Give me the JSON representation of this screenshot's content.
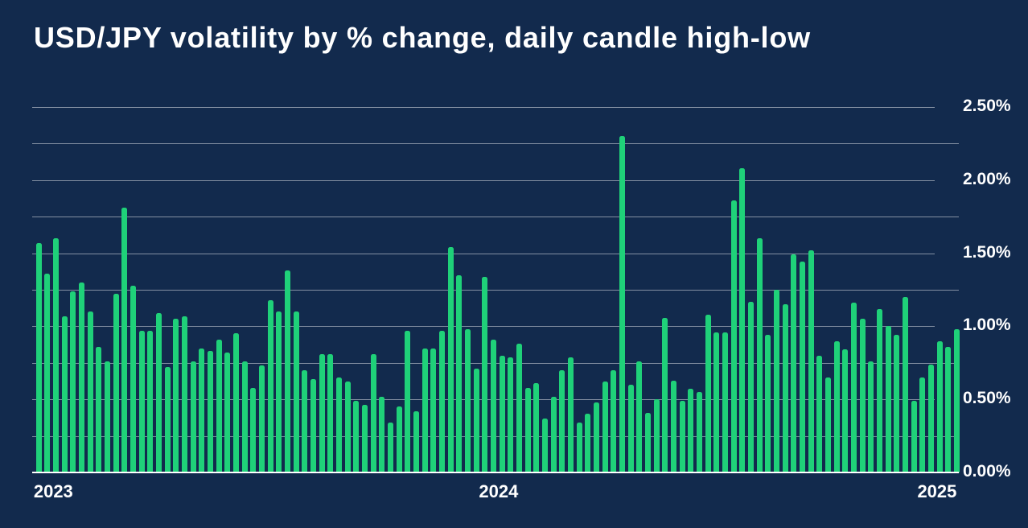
{
  "title": "USD/JPY volatility by % change, daily candle high-low",
  "colors": {
    "background": "#122A4D",
    "bar": "#1FD179",
    "gridline": "#FFFFFF7A",
    "baseline": "#FFFFFF",
    "text": "#FFFFFF"
  },
  "chart_data": {
    "type": "bar",
    "title": "USD/JPY volatility by % change, daily candle high-low",
    "xlabel": "",
    "ylabel": "",
    "x_unit": "week",
    "ylim": [
      0,
      2.5
    ],
    "y_tick_step_minor": 0.25,
    "y_axis_side": "right",
    "grid": true,
    "legend": false,
    "y_ticks": [
      {
        "value": 0.0,
        "label": "0.00%"
      },
      {
        "value": 0.5,
        "label": "0.50%"
      },
      {
        "value": 1.0,
        "label": "1.00%"
      },
      {
        "value": 1.5,
        "label": "1.50%"
      },
      {
        "value": 2.0,
        "label": "2.00%"
      },
      {
        "value": 2.5,
        "label": "2.50%"
      }
    ],
    "x_ticks": [
      {
        "label": "2023",
        "bar_index": 1.7
      },
      {
        "label": "2024",
        "bar_index": 53.6
      },
      {
        "label": "2025",
        "bar_index": 104.7
      }
    ],
    "values": [
      1.57,
      1.36,
      1.6,
      1.07,
      1.24,
      1.3,
      1.1,
      0.86,
      0.76,
      1.22,
      1.81,
      1.28,
      0.97,
      0.97,
      1.09,
      0.72,
      1.05,
      1.07,
      0.76,
      0.85,
      0.83,
      0.91,
      0.82,
      0.95,
      0.76,
      0.58,
      0.73,
      1.18,
      1.1,
      1.38,
      1.1,
      0.7,
      0.64,
      0.81,
      0.81,
      0.65,
      0.62,
      0.49,
      0.46,
      0.81,
      0.52,
      0.34,
      0.45,
      0.97,
      0.42,
      0.85,
      0.85,
      0.97,
      1.54,
      1.35,
      0.98,
      0.71,
      1.34,
      0.91,
      0.8,
      0.79,
      0.88,
      0.58,
      0.61,
      0.37,
      0.52,
      0.7,
      0.79,
      0.34,
      0.4,
      0.48,
      0.62,
      0.7,
      2.3,
      0.6,
      0.76,
      0.41,
      0.5,
      1.06,
      0.63,
      0.49,
      0.57,
      0.55,
      1.08,
      0.96,
      0.96,
      1.86,
      2.08,
      1.17,
      1.6,
      0.94,
      1.25,
      1.15,
      1.49,
      1.44,
      1.52,
      0.8,
      0.65,
      0.9,
      0.84,
      1.16,
      1.05,
      0.76,
      1.12,
      1.0,
      0.94,
      1.2,
      0.49,
      0.65,
      0.74,
      0.9,
      0.86,
      0.98
    ]
  }
}
